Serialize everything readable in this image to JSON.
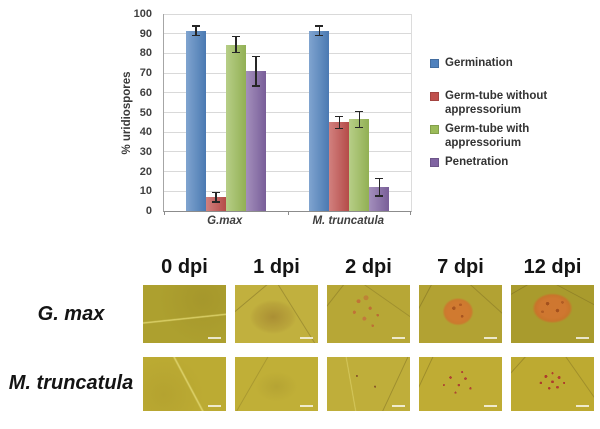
{
  "chart_data": {
    "type": "bar",
    "title": "",
    "xlabel": "",
    "ylabel": "% uridiospores",
    "ylim": [
      0,
      100
    ],
    "yticks": [
      0,
      10,
      20,
      30,
      40,
      50,
      60,
      70,
      80,
      90,
      100
    ],
    "grid": true,
    "legend_position": "right",
    "categories": [
      "G.max",
      "M. truncatula"
    ],
    "series": [
      {
        "name": "Germination",
        "color": "#4F81BD",
        "values": [
          91.5,
          91.5
        ],
        "errors": [
          2.5,
          2.5
        ]
      },
      {
        "name": "Germ-tube without appressorium",
        "color": "#C0504D",
        "values": [
          7,
          45
        ],
        "errors": [
          2.5,
          3
        ]
      },
      {
        "name": "Germ-tube with appressorium",
        "color": "#9BBB59",
        "values": [
          84.5,
          46.5
        ],
        "errors": [
          4,
          4
        ]
      },
      {
        "name": "Penetration",
        "color": "#8064A2",
        "values": [
          71,
          12
        ],
        "errors": [
          7.5,
          4.5
        ]
      }
    ]
  },
  "panel": {
    "dpi_labels": [
      "0 dpi",
      "1 dpi",
      "2 dpi",
      "7 dpi",
      "12 dpi"
    ],
    "rows": [
      {
        "label": "G. max",
        "lesions": [
          "plain-vein",
          "faint-blotch",
          "scattered-spots",
          "large-pustule",
          "dense-pustule"
        ]
      },
      {
        "label": "M. truncatula",
        "lesions": [
          "plain-vein-2",
          "faint-shade",
          "sparse-dots",
          "red-dots",
          "red-dot-cluster"
        ]
      }
    ]
  }
}
